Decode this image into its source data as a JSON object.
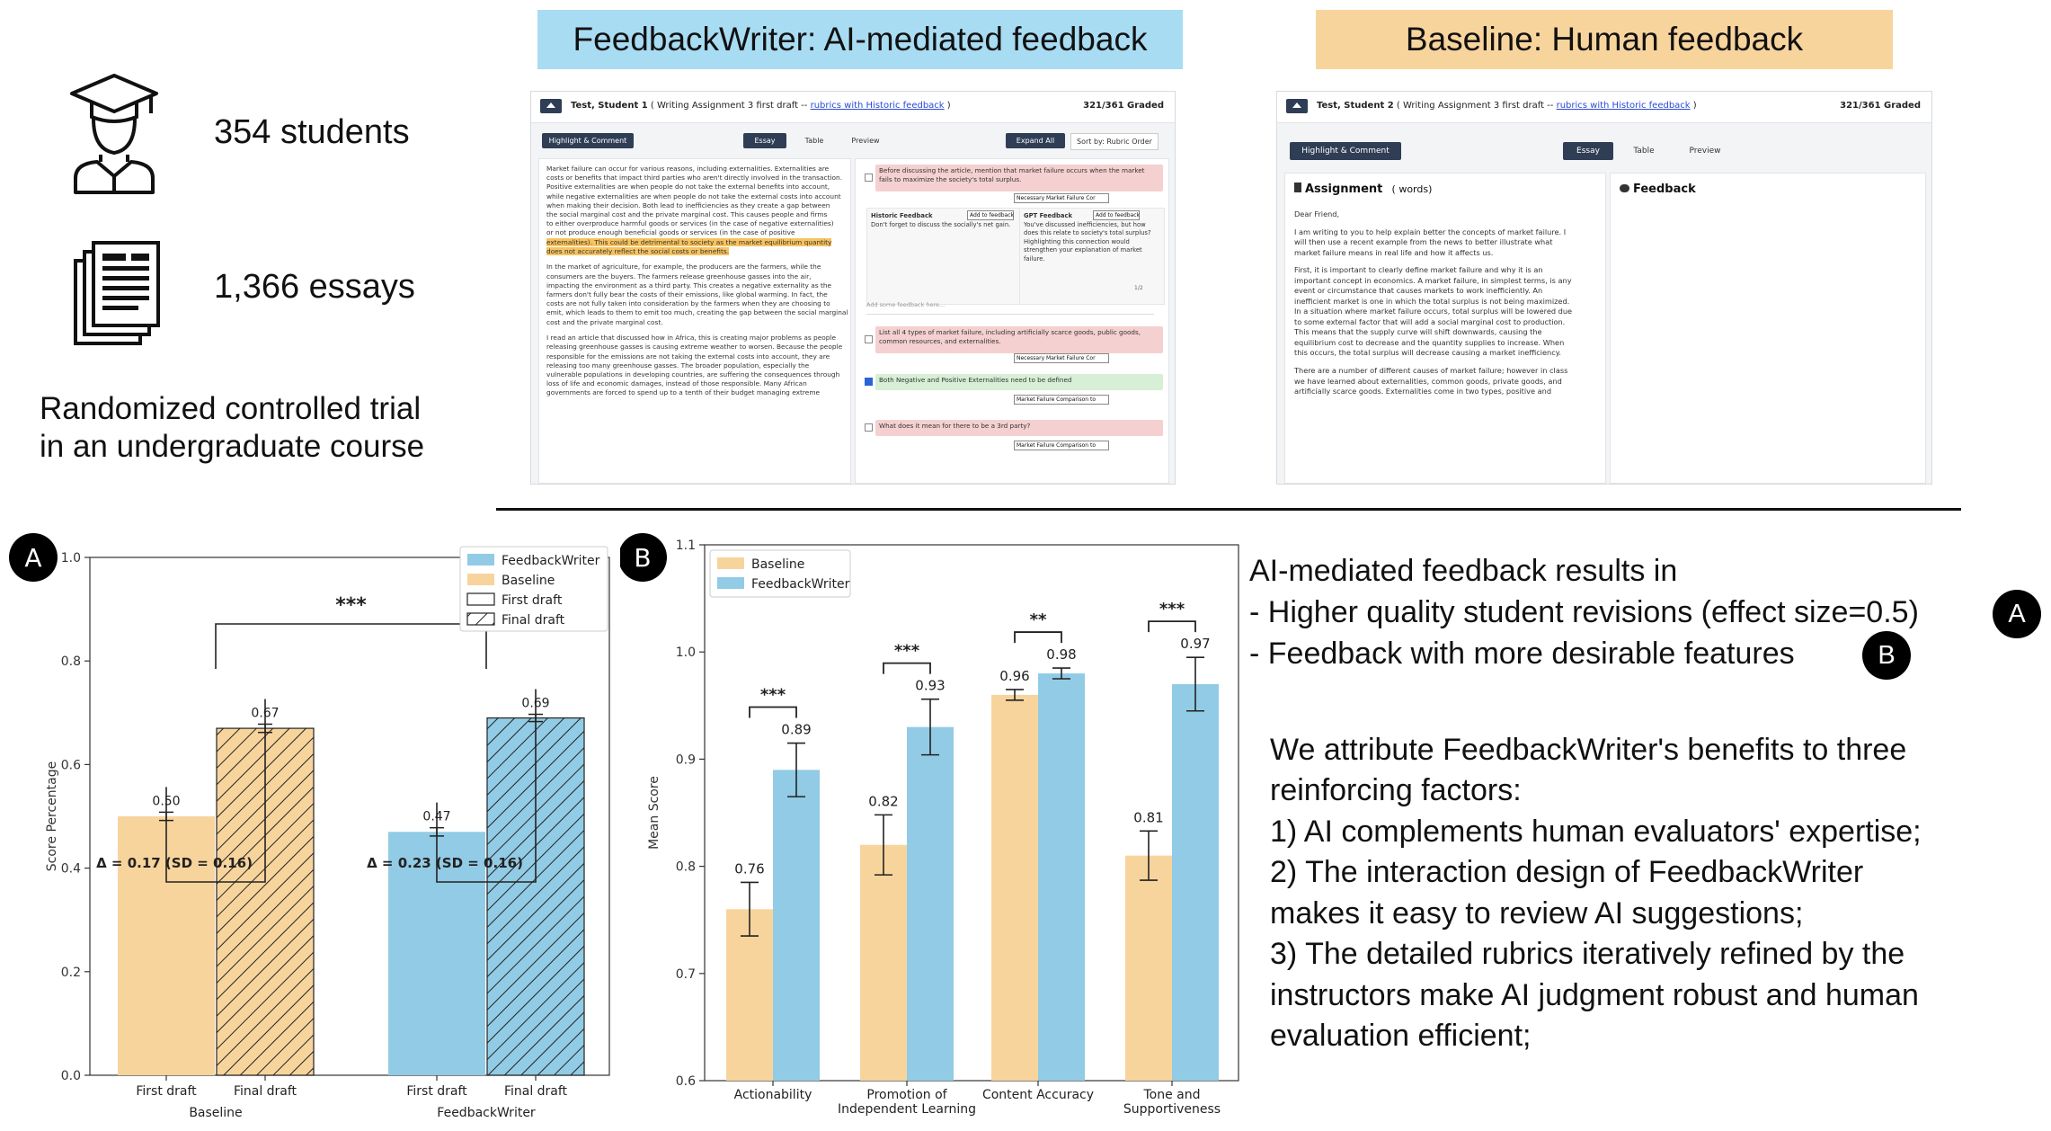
{
  "stats": {
    "students": "354 students",
    "essays": "1,366 essays",
    "design_line1": "Randomized controlled trial",
    "design_line2": "in an undergraduate course"
  },
  "icons": {
    "students": "graduate-icon",
    "essays": "document-stack-icon",
    "home": "home-icon"
  },
  "banners": {
    "ai": "FeedbackWriter: AI-mediated feedback",
    "baseline": "Baseline: Human feedback",
    "ai_color": "#a8dcf3",
    "baseline_color": "#f8d49d"
  },
  "shot_ai": {
    "student": "Test, Student 1",
    "context_prefix": "( Writing Assignment 3 first draft -- ",
    "rubric_link": "rubrics with Historic feedback",
    "context_suffix": " )",
    "graded": "321/361 Graded",
    "highlight_btn": "Highlight & Comment",
    "tabs": [
      "Essay",
      "Table",
      "Preview"
    ],
    "expand_btn": "Expand All",
    "sort": "Sort by: Rubric Order",
    "essay_lines": [
      "Market failure can occur for various reasons, including externalities. Externalities are",
      "costs or benefits that impact third parties who aren't directly involved in the transaction.",
      "Positive externalities are when people do not take the external benefits into account,",
      "while negative externalities are when people do not take the external costs into account",
      "when making their decision. Both lead to inefficiencies as they create a gap between",
      "the social marginal cost and the private marginal cost. This causes people and firms",
      "to either overproduce harmful goods or services (in the case of negative externalities)",
      "or not produce enough beneficial goods or services (in the case of positive",
      "externalities). This could be detrimental to society as the market equilibrium quantity",
      "does not accurately reflect the social costs or benefits.",
      "",
      "In the market of agriculture, for example, the producers are the farmers, while the",
      "consumers are the buyers. The farmers release greenhouse gasses into the air,",
      "impacting the environment as a third party. This creates a negative externality as the",
      "farmers don't fully bear the costs of their emissions, like global warming. In fact, the",
      "costs are not fully taken into consideration by the farmers when they are choosing to",
      "emit, which leads to them to emit too much, creating the gap between the social marginal",
      "cost and the private marginal cost.",
      "",
      "I read an article that discussed how in Africa, this is creating major problems as people",
      "releasing greenhouse gasses is causing extreme weather to worsen. Because the people",
      "responsible for the emissions are not taking the external costs into account, they are",
      "releasing too many greenhouse gasses. The broader population, especially the",
      "vulnerable populations in developing countries, are suffering the consequences through",
      "loss of life and economic damages, instead of those responsible. Many African",
      "governments are forced to spend up to a tenth of their budget managing extreme"
    ],
    "fb1": "Before discussing the article, mention that market failure occurs when the market fails to maximize the society's total surplus.",
    "fb1_select": "Necessary Market Failure Cor",
    "historic_title": "Historic Feedback",
    "historic_add": "Add to feedback",
    "historic_text": "Don't forget to discuss the socially's net gain.",
    "gpt_title": "GPT Feedback",
    "gpt_add": "Add to feedback",
    "gpt_text": "You've discussed inefficiencies, but how does this relate to society's total surplus? Highlighting this connection would strengthen your explanation of market failure.",
    "pager": "1/2",
    "add_placeholder": "Add some feedback here...",
    "fb2": "List all 4 types of market failure, including artificially scarce goods, public goods, common resources, and externalities.",
    "fb2_select": "Necessary Market Failure Cor",
    "fb3": "Both Negative and Positive Externalities need to be defined",
    "fb3_select": "Market Failure Comparison to",
    "fb4": "What does it mean for there to be a 3rd party?",
    "fb4_select": "Market Failure Comparison to"
  },
  "shot_base": {
    "student": "Test, Student 2",
    "context_prefix": "( Writing Assignment 3 first draft -- ",
    "rubric_link": "rubrics with Historic feedback",
    "context_suffix": " )",
    "graded": "321/361 Graded",
    "highlight_btn": "Highlight & Comment",
    "tabs": [
      "Essay",
      "Table",
      "Preview"
    ],
    "assignment_title": "Assignment",
    "assignment_words": "( words)",
    "feedback_title": "Feedback",
    "essay_lines": [
      "Dear Friend,",
      "",
      "I am writing to you to help explain better the concepts of market failure. I",
      "will then use a recent example from the news to better illustrate what",
      "market failure means in real life and how it affects us.",
      "",
      "First, it is important to clearly define market failure and why it is an",
      "important concept in economics. A market failure, in simplest terms, is any",
      "event or circumstance that causes markets to work inefficiently. An",
      "inefficient market is one in which the total surplus is not being maximized.",
      "In a situation where market failure occurs, total surplus will be lowered due",
      "to some external factor that will add a social marginal cost to production.",
      "This means that the supply curve will shift downwards, causing the",
      "equilibrium cost to decrease and the quantity supplies to increase. When",
      "this occurs, the total surplus will decrease causing a market inefficiency.",
      "",
      "There are a number of different causes of market failure; however in class",
      "we have learned about externalities, common goods, private goods, and",
      "artificially scarce goods. Externalities come in two types, positive and"
    ]
  },
  "chart_data": [
    {
      "type": "bar",
      "panel_label": "A",
      "groups": [
        "Baseline",
        "FeedbackWriter"
      ],
      "categories": [
        "First draft",
        "Final draft"
      ],
      "series": [
        {
          "name": "Baseline",
          "color": "#f8d49d",
          "values": [
            0.5,
            0.67
          ],
          "errors": [
            0.008,
            0.008
          ]
        },
        {
          "name": "FeedbackWriter",
          "color": "#92cbe5",
          "values": [
            0.47,
            0.69
          ],
          "errors": [
            0.008,
            0.007
          ]
        }
      ],
      "value_labels": [
        "0.50",
        "0.67",
        "0.47",
        "0.69"
      ],
      "delta_labels": [
        "Δ = 0.17 (SD = 0.16)",
        "Δ = 0.23 (SD = 0.16)"
      ],
      "significance": "***",
      "legend": [
        "FeedbackWriter",
        "Baseline",
        "First draft",
        "Final draft"
      ],
      "legend_position": "top-right",
      "ylabel": "Score Percentage",
      "xlabel": "",
      "ylim": [
        0.0,
        1.0
      ],
      "yticks": [
        "0.0",
        "0.2",
        "0.4",
        "0.6",
        "0.8",
        "1.0"
      ]
    },
    {
      "type": "bar",
      "panel_label": "B",
      "categories": [
        "Actionability",
        "Promotion of\nIndependent Learning",
        "Content Accuracy",
        "Tone and\nSupportiveness"
      ],
      "series": [
        {
          "name": "Baseline",
          "color": "#f8d49d",
          "values": [
            0.76,
            0.82,
            0.96,
            0.81
          ],
          "errors": [
            0.025,
            0.028,
            0.005,
            0.023
          ]
        },
        {
          "name": "FeedbackWriter",
          "color": "#92cbe5",
          "values": [
            0.89,
            0.93,
            0.98,
            0.97
          ],
          "errors": [
            0.025,
            0.026,
            0.005,
            0.025
          ]
        }
      ],
      "value_labels_baseline": [
        "0.76",
        "0.82",
        "0.96",
        "0.81"
      ],
      "value_labels_fw": [
        "0.89",
        "0.93",
        "0.98",
        "0.97"
      ],
      "significance": [
        "***",
        "***",
        "**",
        "***"
      ],
      "legend": [
        "Baseline",
        "FeedbackWriter"
      ],
      "legend_position": "top-left",
      "ylabel": "Mean Score",
      "xlabel": "",
      "ylim": [
        0.6,
        1.1
      ],
      "yticks": [
        "0.6",
        "0.7",
        "0.8",
        "0.9",
        "1.0",
        "1.1"
      ]
    }
  ],
  "results": {
    "intro": "AI-mediated feedback results in",
    "bullet1": "- Higher quality student revisions (effect size=0.5)",
    "bullet1_badge": "A",
    "bullet2": "- Feedback with more desirable features",
    "bullet2_badge": "B",
    "attr_lines": [
      "We attribute FeedbackWriter's benefits to three",
      "reinforcing factors:",
      "1) AI complements human evaluators' expertise;",
      "2) The interaction design of FeedbackWriter",
      "makes it easy to review AI suggestions;",
      "3) The detailed rubrics iteratively refined by the",
      "instructors make AI judgment robust and human",
      "evaluation efficient;"
    ]
  }
}
